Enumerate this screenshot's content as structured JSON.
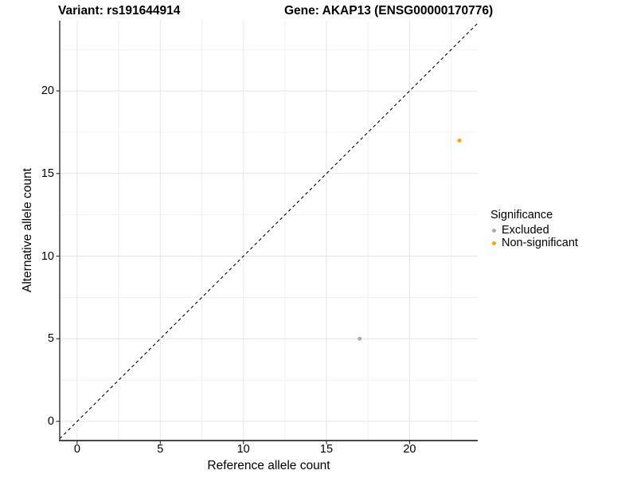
{
  "page": {
    "background": "#FFFFFF"
  },
  "titles": {
    "variant": "Variant: rs191644914",
    "gene": "Gene: AKAP13 (ENSG00000170776)"
  },
  "axes": {
    "x_label": "Reference allele count",
    "y_label": "Alternative allele count"
  },
  "legend": {
    "title": "Significance",
    "position": "right",
    "items": [
      {
        "label": "Excluded",
        "color": "#ABABAB"
      },
      {
        "label": "Non-significant",
        "color": "#FFA405"
      }
    ]
  },
  "chart_data": {
    "type": "scatter",
    "title": "Variant: rs191644914 | Gene: AKAP13 (ENSG00000170776)",
    "xlabel": "Reference allele count",
    "ylabel": "Alternative allele count",
    "xlim": [
      -1.05,
      24.1
    ],
    "ylim": [
      -1.16,
      24.25
    ],
    "x_ticks": [
      0,
      5,
      10,
      15,
      20
    ],
    "y_ticks": [
      0,
      5,
      10,
      15,
      20
    ],
    "x_minor_ticks": [
      2.5,
      7.5,
      12.5,
      17.5,
      22.5
    ],
    "y_minor_ticks": [
      2.5,
      7.5,
      12.5,
      17.5,
      22.5
    ],
    "grid": "on",
    "legend_position": "right",
    "series": [
      {
        "name": "Excluded",
        "color": "#ABABAB",
        "points": [
          {
            "x": 17,
            "y": 5
          }
        ]
      },
      {
        "name": "Non-significant",
        "color": "#FFA405",
        "points": [
          {
            "x": 23,
            "y": 17
          }
        ]
      }
    ],
    "reference_line": {
      "type": "identity",
      "equation": "y = x",
      "style": "dashed",
      "color": "#000000"
    },
    "style": {
      "grid_major_color": "#E4E4E4",
      "grid_minor_color": "#F1F1F1",
      "axis_line_color": "#474747",
      "tick_color": "#333333",
      "point_radius": 2.5
    }
  }
}
